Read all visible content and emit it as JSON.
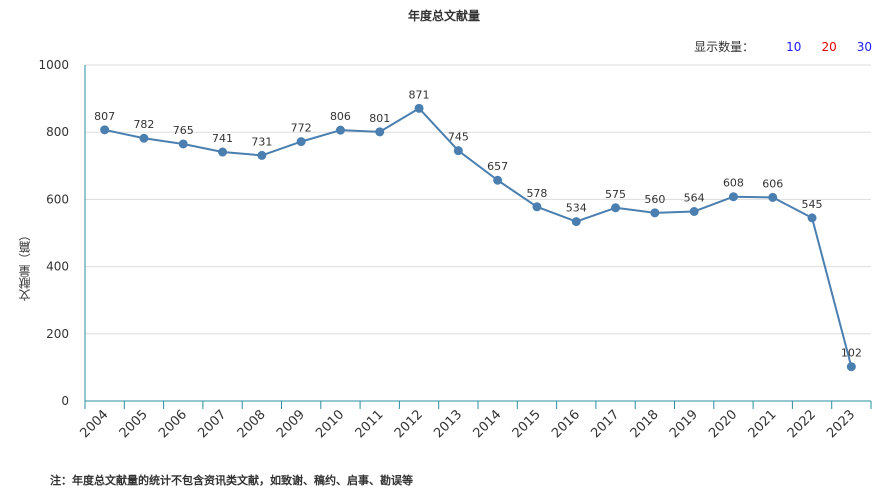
{
  "chart_data": {
    "type": "line",
    "title": "年度总文献量",
    "xlabel": "",
    "ylabel": "文献量（篇）",
    "categories": [
      "2004",
      "2005",
      "2006",
      "2007",
      "2008",
      "2009",
      "2010",
      "2011",
      "2012",
      "2013",
      "2014",
      "2015",
      "2016",
      "2017",
      "2018",
      "2019",
      "2020",
      "2021",
      "2022",
      "2023"
    ],
    "series": [
      {
        "values": [
          807,
          782,
          765,
          741,
          731,
          772,
          806,
          801,
          871,
          745,
          657,
          578,
          534,
          575,
          560,
          564,
          608,
          606,
          545,
          102
        ]
      }
    ],
    "ylim": [
      0,
      1000
    ],
    "yticks": [
      0,
      200,
      400,
      600,
      800,
      1000
    ],
    "grid": true,
    "line_color": "#4a7fb0"
  },
  "controls": {
    "display_count_label": "显示数量：",
    "options": [
      {
        "label": "10",
        "color": "#1a1aff"
      },
      {
        "label": "20",
        "color": "#e60000"
      },
      {
        "label": "30",
        "color": "#1a1aff"
      }
    ]
  },
  "note": "注：年度总文献量的统计不包含资讯类文献，如致谢、稿约、启事、勘误等"
}
